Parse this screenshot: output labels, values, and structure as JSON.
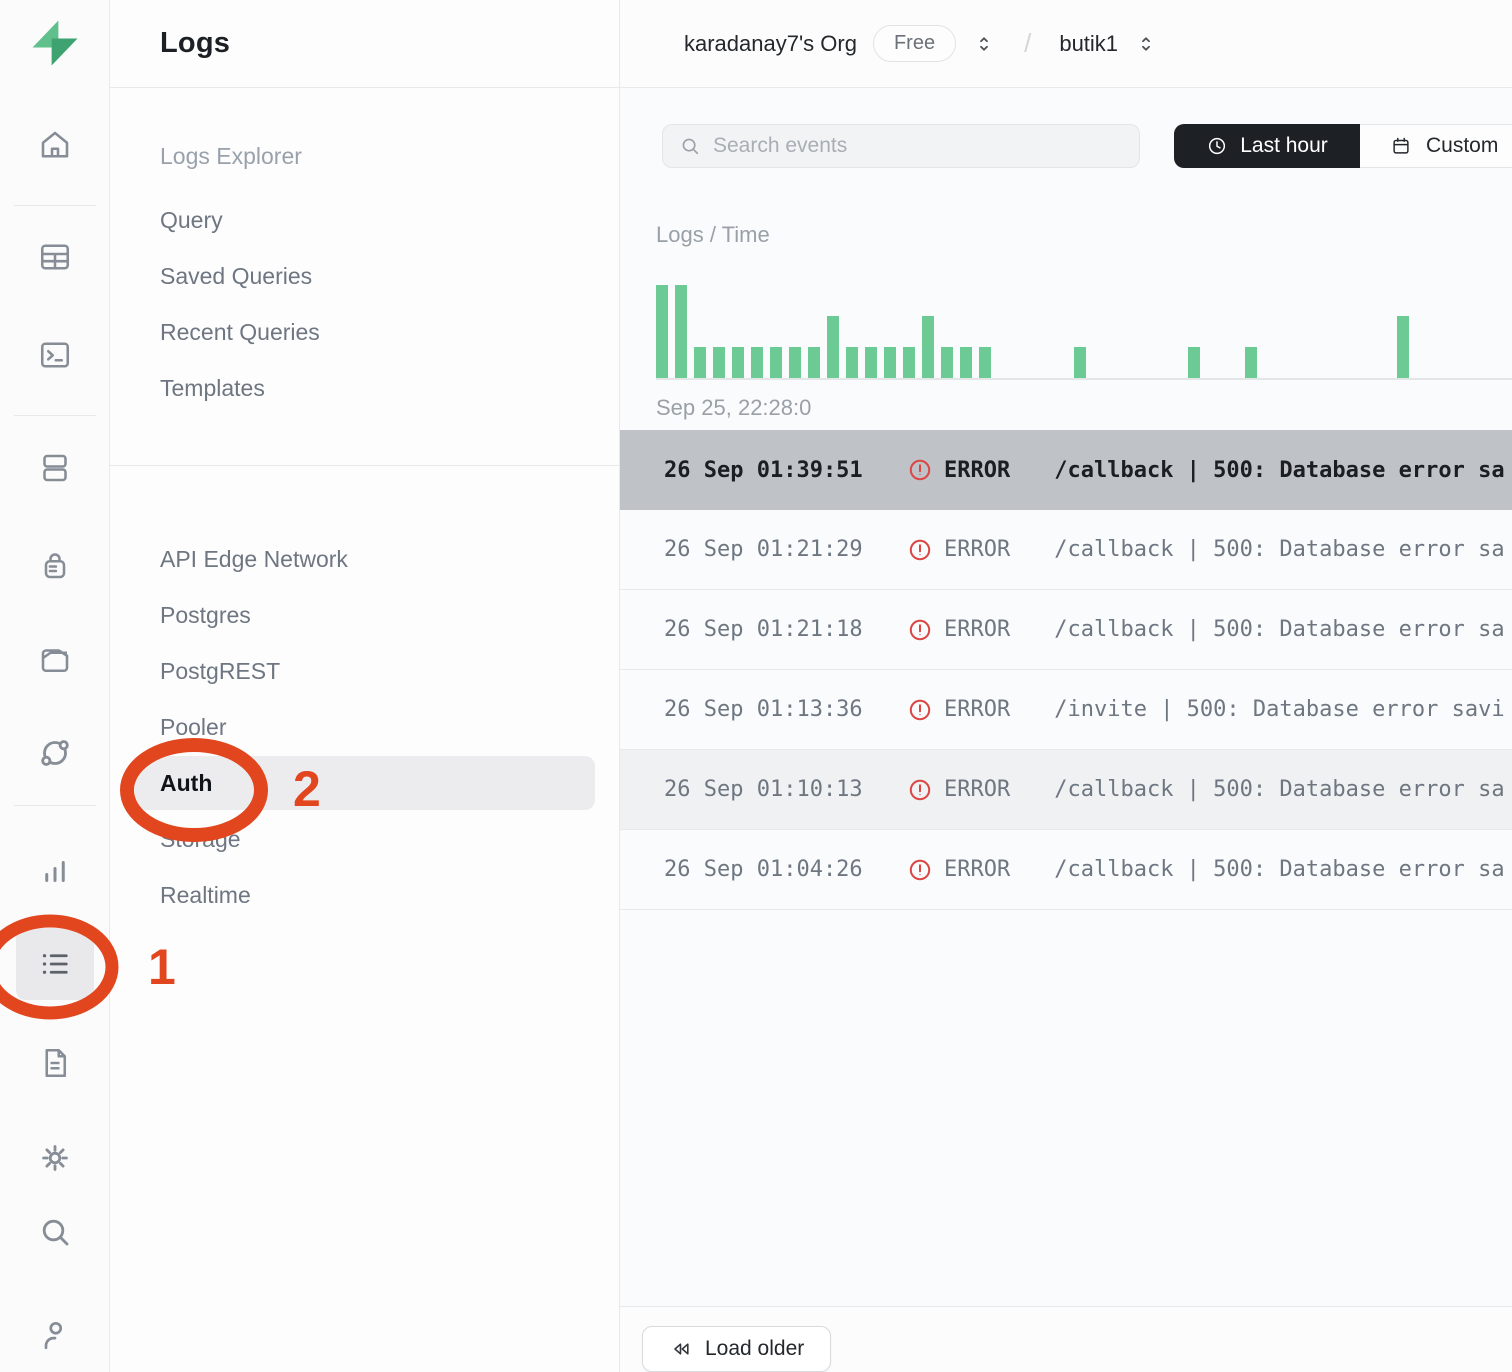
{
  "app_name": "Supabase",
  "rail": {
    "icons": [
      "supabase-logo",
      "home",
      "table-editor",
      "sql-editor",
      "database",
      "auth",
      "storage",
      "realtime",
      "reports",
      "logs",
      "docs",
      "settings",
      "search",
      "account"
    ],
    "active_icon": "logs"
  },
  "sidebar": {
    "title": "Logs",
    "section1": [
      "Logs Explorer",
      "Query",
      "Saved Queries",
      "Recent Queries",
      "Templates"
    ],
    "section2": [
      "API Edge Network",
      "Postgres",
      "PostgREST",
      "Pooler",
      "Auth",
      "Storage",
      "Realtime"
    ],
    "active_item": "Auth"
  },
  "header": {
    "org": "karadanay7's Org",
    "plan": "Free",
    "separator": "/",
    "project": "butik1"
  },
  "toolbar": {
    "search_placeholder": "Search events",
    "last_hour": "Last hour",
    "custom": "Custom"
  },
  "chart_data": {
    "type": "bar",
    "title": "Logs / Time",
    "x_start_label": "Sep 25, 22:28:0",
    "values": [
      3,
      3,
      1,
      1,
      1,
      1,
      1,
      1,
      1,
      2,
      1,
      1,
      1,
      1,
      2,
      1,
      1,
      1,
      0,
      0,
      0,
      0,
      1,
      0,
      0,
      0,
      0,
      0,
      1,
      0,
      0,
      1,
      0,
      0,
      0,
      0,
      0,
      0,
      0,
      2,
      0,
      0,
      0,
      0,
      0
    ],
    "ylim": [
      0,
      3
    ],
    "bar_color": "#6ccb95",
    "grid": false,
    "legend": false
  },
  "table": {
    "rows": [
      {
        "time": "26 Sep 01:39:51",
        "level": "ERROR",
        "message": "/callback | 500: Database error sa",
        "selected": true
      },
      {
        "time": "26 Sep 01:21:29",
        "level": "ERROR",
        "message": "/callback | 500: Database error sa",
        "selected": false
      },
      {
        "time": "26 Sep 01:21:18",
        "level": "ERROR",
        "message": "/callback | 500: Database error sa",
        "selected": false
      },
      {
        "time": "26 Sep 01:13:36",
        "level": "ERROR",
        "message": "/invite | 500: Database error savi",
        "selected": false
      },
      {
        "time": "26 Sep 01:10:13",
        "level": "ERROR",
        "message": "/callback | 500: Database error sa",
        "selected": false
      },
      {
        "time": "26 Sep 01:04:26",
        "level": "ERROR",
        "message": "/callback | 500: Database error sa",
        "selected": false
      }
    ]
  },
  "footer": {
    "load_older": "Load older"
  },
  "annotations": {
    "step1": "1",
    "step2": "2",
    "color": "#e2461f"
  },
  "colors": {
    "brand_green": "#3ecf8e",
    "chart_bar": "#6ccb95",
    "error_red": "#dc4646",
    "selected_row_bg": "#bfc2c6",
    "last_hour_btn_bg": "#1d2125"
  }
}
